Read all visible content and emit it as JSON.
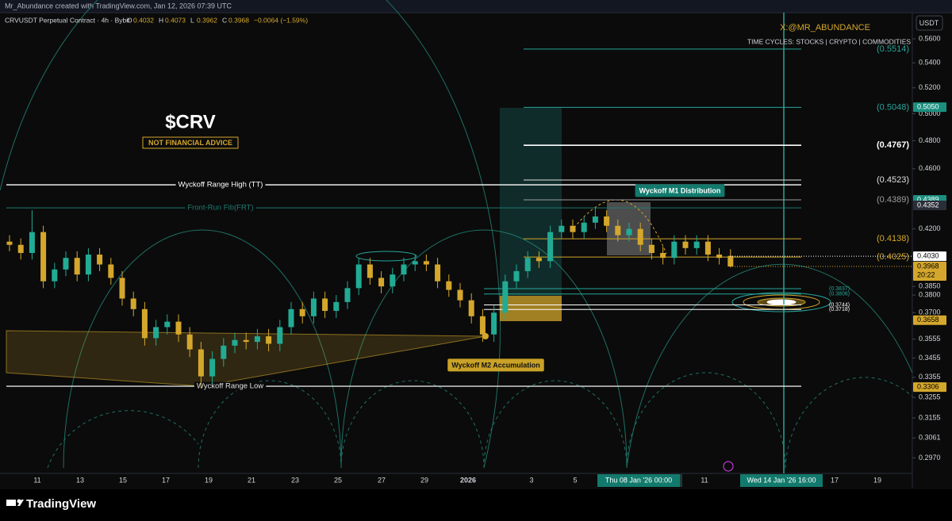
{
  "header": {
    "credit": "Mr_Abundance created with TradingView.com, Jan 12, 2026 07:39 UTC"
  },
  "chart_data": {
    "type": "candlestick",
    "symbol": "CRVUSDT Perpetual Contract · 4h · Bybit",
    "ohlc_legend": [
      {
        "label": "O",
        "value": 0.4032
      },
      {
        "label": "H",
        "value": 0.4073
      },
      {
        "label": "L",
        "value": 0.3962
      },
      {
        "label": "C",
        "value": 0.3968
      }
    ],
    "change": "−0.0064 (−1.59%)",
    "title": "$CRV",
    "subtitle": "NOT FINANCIAL ADVICE",
    "author": "X:@MR_ABUNDANCE",
    "tagline": "TIME CYCLES: STOCKS | CRYPTO | COMMODITIES",
    "currency": "USDT",
    "log_scale": true,
    "ylim": [
      0.2908,
      0.5812
    ],
    "yticks": [
      {
        "value": 0.56,
        "label": "0.5600"
      },
      {
        "value": 0.54,
        "label": "0.5400"
      },
      {
        "value": 0.52,
        "label": "0.5200"
      },
      {
        "value": 0.5,
        "label": "0.5000"
      },
      {
        "value": 0.48,
        "label": "0.4800"
      },
      {
        "value": 0.46,
        "label": "0.4600"
      },
      {
        "value": 0.42,
        "label": "0.4200"
      },
      {
        "value": 0.385,
        "label": "0.3850"
      },
      {
        "value": 0.38,
        "label": "0.3800"
      },
      {
        "value": 0.37,
        "label": "0.3700"
      },
      {
        "value": 0.3555,
        "label": "0.3555"
      },
      {
        "value": 0.3455,
        "label": "0.3455"
      },
      {
        "value": 0.3355,
        "label": "0.3355"
      },
      {
        "value": 0.3255,
        "label": "0.3255"
      },
      {
        "value": 0.3155,
        "label": "0.3155"
      },
      {
        "value": 0.3061,
        "label": "0.3061"
      },
      {
        "value": 0.297,
        "label": "0.2970"
      }
    ],
    "up_color": "#22ab94",
    "down_color": "#d4a72c",
    "ohlc": [
      [
        0.412,
        0.416,
        0.406,
        0.41
      ],
      [
        0.41,
        0.414,
        0.401,
        0.405
      ],
      [
        0.405,
        0.432,
        0.401,
        0.418
      ],
      [
        0.418,
        0.422,
        0.384,
        0.388
      ],
      [
        0.388,
        0.399,
        0.384,
        0.395
      ],
      [
        0.395,
        0.406,
        0.391,
        0.402
      ],
      [
        0.402,
        0.406,
        0.388,
        0.392
      ],
      [
        0.392,
        0.408,
        0.388,
        0.404
      ],
      [
        0.404,
        0.408,
        0.394,
        0.398
      ],
      [
        0.398,
        0.402,
        0.386,
        0.39
      ],
      [
        0.39,
        0.394,
        0.374,
        0.378
      ],
      [
        0.378,
        0.382,
        0.368,
        0.372
      ],
      [
        0.372,
        0.376,
        0.352,
        0.356
      ],
      [
        0.356,
        0.366,
        0.352,
        0.362
      ],
      [
        0.362,
        0.369,
        0.358,
        0.365
      ],
      [
        0.365,
        0.369,
        0.354,
        0.358
      ],
      [
        0.358,
        0.362,
        0.346,
        0.35
      ],
      [
        0.35,
        0.354,
        0.33,
        0.336
      ],
      [
        0.336,
        0.349,
        0.332,
        0.345
      ],
      [
        0.345,
        0.356,
        0.341,
        0.352
      ],
      [
        0.352,
        0.359,
        0.348,
        0.355
      ],
      [
        0.355,
        0.359,
        0.35,
        0.354
      ],
      [
        0.354,
        0.361,
        0.35,
        0.357
      ],
      [
        0.357,
        0.361,
        0.349,
        0.353
      ],
      [
        0.353,
        0.366,
        0.349,
        0.362
      ],
      [
        0.362,
        0.376,
        0.358,
        0.372
      ],
      [
        0.372,
        0.376,
        0.364,
        0.368
      ],
      [
        0.368,
        0.382,
        0.364,
        0.378
      ],
      [
        0.378,
        0.382,
        0.367,
        0.371
      ],
      [
        0.371,
        0.38,
        0.367,
        0.376
      ],
      [
        0.376,
        0.388,
        0.372,
        0.384
      ],
      [
        0.384,
        0.402,
        0.38,
        0.398
      ],
      [
        0.398,
        0.402,
        0.386,
        0.39
      ],
      [
        0.39,
        0.394,
        0.381,
        0.385
      ],
      [
        0.385,
        0.396,
        0.381,
        0.392
      ],
      [
        0.392,
        0.402,
        0.388,
        0.398
      ],
      [
        0.398,
        0.404,
        0.394,
        0.4
      ],
      [
        0.4,
        0.404,
        0.394,
        0.398
      ],
      [
        0.398,
        0.402,
        0.384,
        0.388
      ],
      [
        0.388,
        0.392,
        0.379,
        0.383
      ],
      [
        0.383,
        0.387,
        0.373,
        0.377
      ],
      [
        0.377,
        0.381,
        0.364,
        0.368
      ],
      [
        0.368,
        0.372,
        0.354,
        0.358
      ],
      [
        0.358,
        0.374,
        0.354,
        0.37
      ],
      [
        0.37,
        0.392,
        0.366,
        0.388
      ],
      [
        0.388,
        0.398,
        0.384,
        0.394
      ],
      [
        0.394,
        0.406,
        0.39,
        0.402
      ],
      [
        0.402,
        0.406,
        0.396,
        0.4
      ],
      [
        0.4,
        0.422,
        0.396,
        0.418
      ],
      [
        0.418,
        0.426,
        0.414,
        0.422
      ],
      [
        0.422,
        0.426,
        0.414,
        0.418
      ],
      [
        0.418,
        0.428,
        0.414,
        0.424
      ],
      [
        0.424,
        0.434,
        0.42,
        0.428
      ],
      [
        0.428,
        0.432,
        0.418,
        0.422
      ],
      [
        0.422,
        0.426,
        0.412,
        0.416
      ],
      [
        0.416,
        0.424,
        0.412,
        0.42
      ],
      [
        0.42,
        0.424,
        0.406,
        0.41
      ],
      [
        0.41,
        0.414,
        0.401,
        0.405
      ],
      [
        0.405,
        0.409,
        0.398,
        0.402
      ],
      [
        0.402,
        0.416,
        0.398,
        0.412
      ],
      [
        0.412,
        0.416,
        0.404,
        0.408
      ],
      [
        0.408,
        0.416,
        0.404,
        0.412
      ],
      [
        0.412,
        0.416,
        0.4,
        0.404
      ],
      [
        0.404,
        0.408,
        0.398,
        0.402
      ],
      [
        0.4032,
        0.4073,
        0.3962,
        0.3968
      ]
    ],
    "x_labels": [
      "11",
      "13",
      "15",
      "17",
      "19",
      "21",
      "23",
      "25",
      "27",
      "29",
      "2026",
      "3",
      "5",
      "Thu 08 Jan '26  00:00",
      "11",
      "Wed 14 Jan '26  16:00",
      "17",
      "19"
    ],
    "levels": [
      {
        "value": 0.5514,
        "label": "(0.5514)",
        "color": "#26a69a"
      },
      {
        "value": 0.5048,
        "label": "(0.5048)",
        "color": "#26a69a"
      },
      {
        "value": 0.4767,
        "label": "(0.4767)",
        "color": "#ffffff"
      },
      {
        "value": 0.4523,
        "label": "(0.4523)",
        "color": "#e0e0e0"
      },
      {
        "value": 0.4389,
        "label": "(0.4389)",
        "color": "#9e9e9e"
      },
      {
        "value": 0.4138,
        "label": "(0.4138)",
        "color": "#d4a72c"
      },
      {
        "value": 0.4025,
        "label": "(0.4025)",
        "color": "#d4a72c"
      },
      {
        "value": 0.3837,
        "label": "(0.3837)",
        "color": "#26a69a"
      },
      {
        "value": 0.3806,
        "label": "(0.3806)",
        "color": "#26a69a"
      },
      {
        "value": 0.3744,
        "label": "(0.3744)",
        "color": "#ffffff"
      },
      {
        "value": 0.3718,
        "label": "(0.3718)",
        "color": "#ffffff"
      }
    ],
    "annotations": [
      {
        "text": "Wyckoff Range High (TT)",
        "value": 0.449,
        "color": "#ffffff"
      },
      {
        "text": "Front-Run Fib(FRT)",
        "value": 0.4336,
        "color": "#1e7a6e"
      },
      {
        "text": "Wyckoff Range Low",
        "value": 0.331,
        "color": "#e0e0e0"
      }
    ],
    "price_tags": [
      {
        "value": 0.505,
        "label": "0.5050",
        "color": "#1b8f7f"
      },
      {
        "value": 0.4389,
        "label": "0.4389",
        "color": "#1b8f7f"
      },
      {
        "value": 0.4352,
        "label": "0.4352",
        "color": "#2a2e39"
      },
      {
        "value": 0.403,
        "label": "0.4030",
        "color": "#ffffff"
      },
      {
        "value": 0.3968,
        "label": "0.3968",
        "color": "#d4a72c"
      },
      {
        "value": 0.3658,
        "label": "0.3658",
        "color": "#d4a72c"
      },
      {
        "value": 0.3306,
        "label": "0.3306",
        "color": "#d4a72c"
      }
    ],
    "countdown": "20:22",
    "boxes": [
      {
        "text": "Wyckoff M1 Distribution",
        "color": "#127a6c"
      },
      {
        "text": "Wyckoff M2 Accumulation",
        "color": "#c9a227"
      }
    ]
  },
  "footer": {
    "brand": "TradingView"
  }
}
